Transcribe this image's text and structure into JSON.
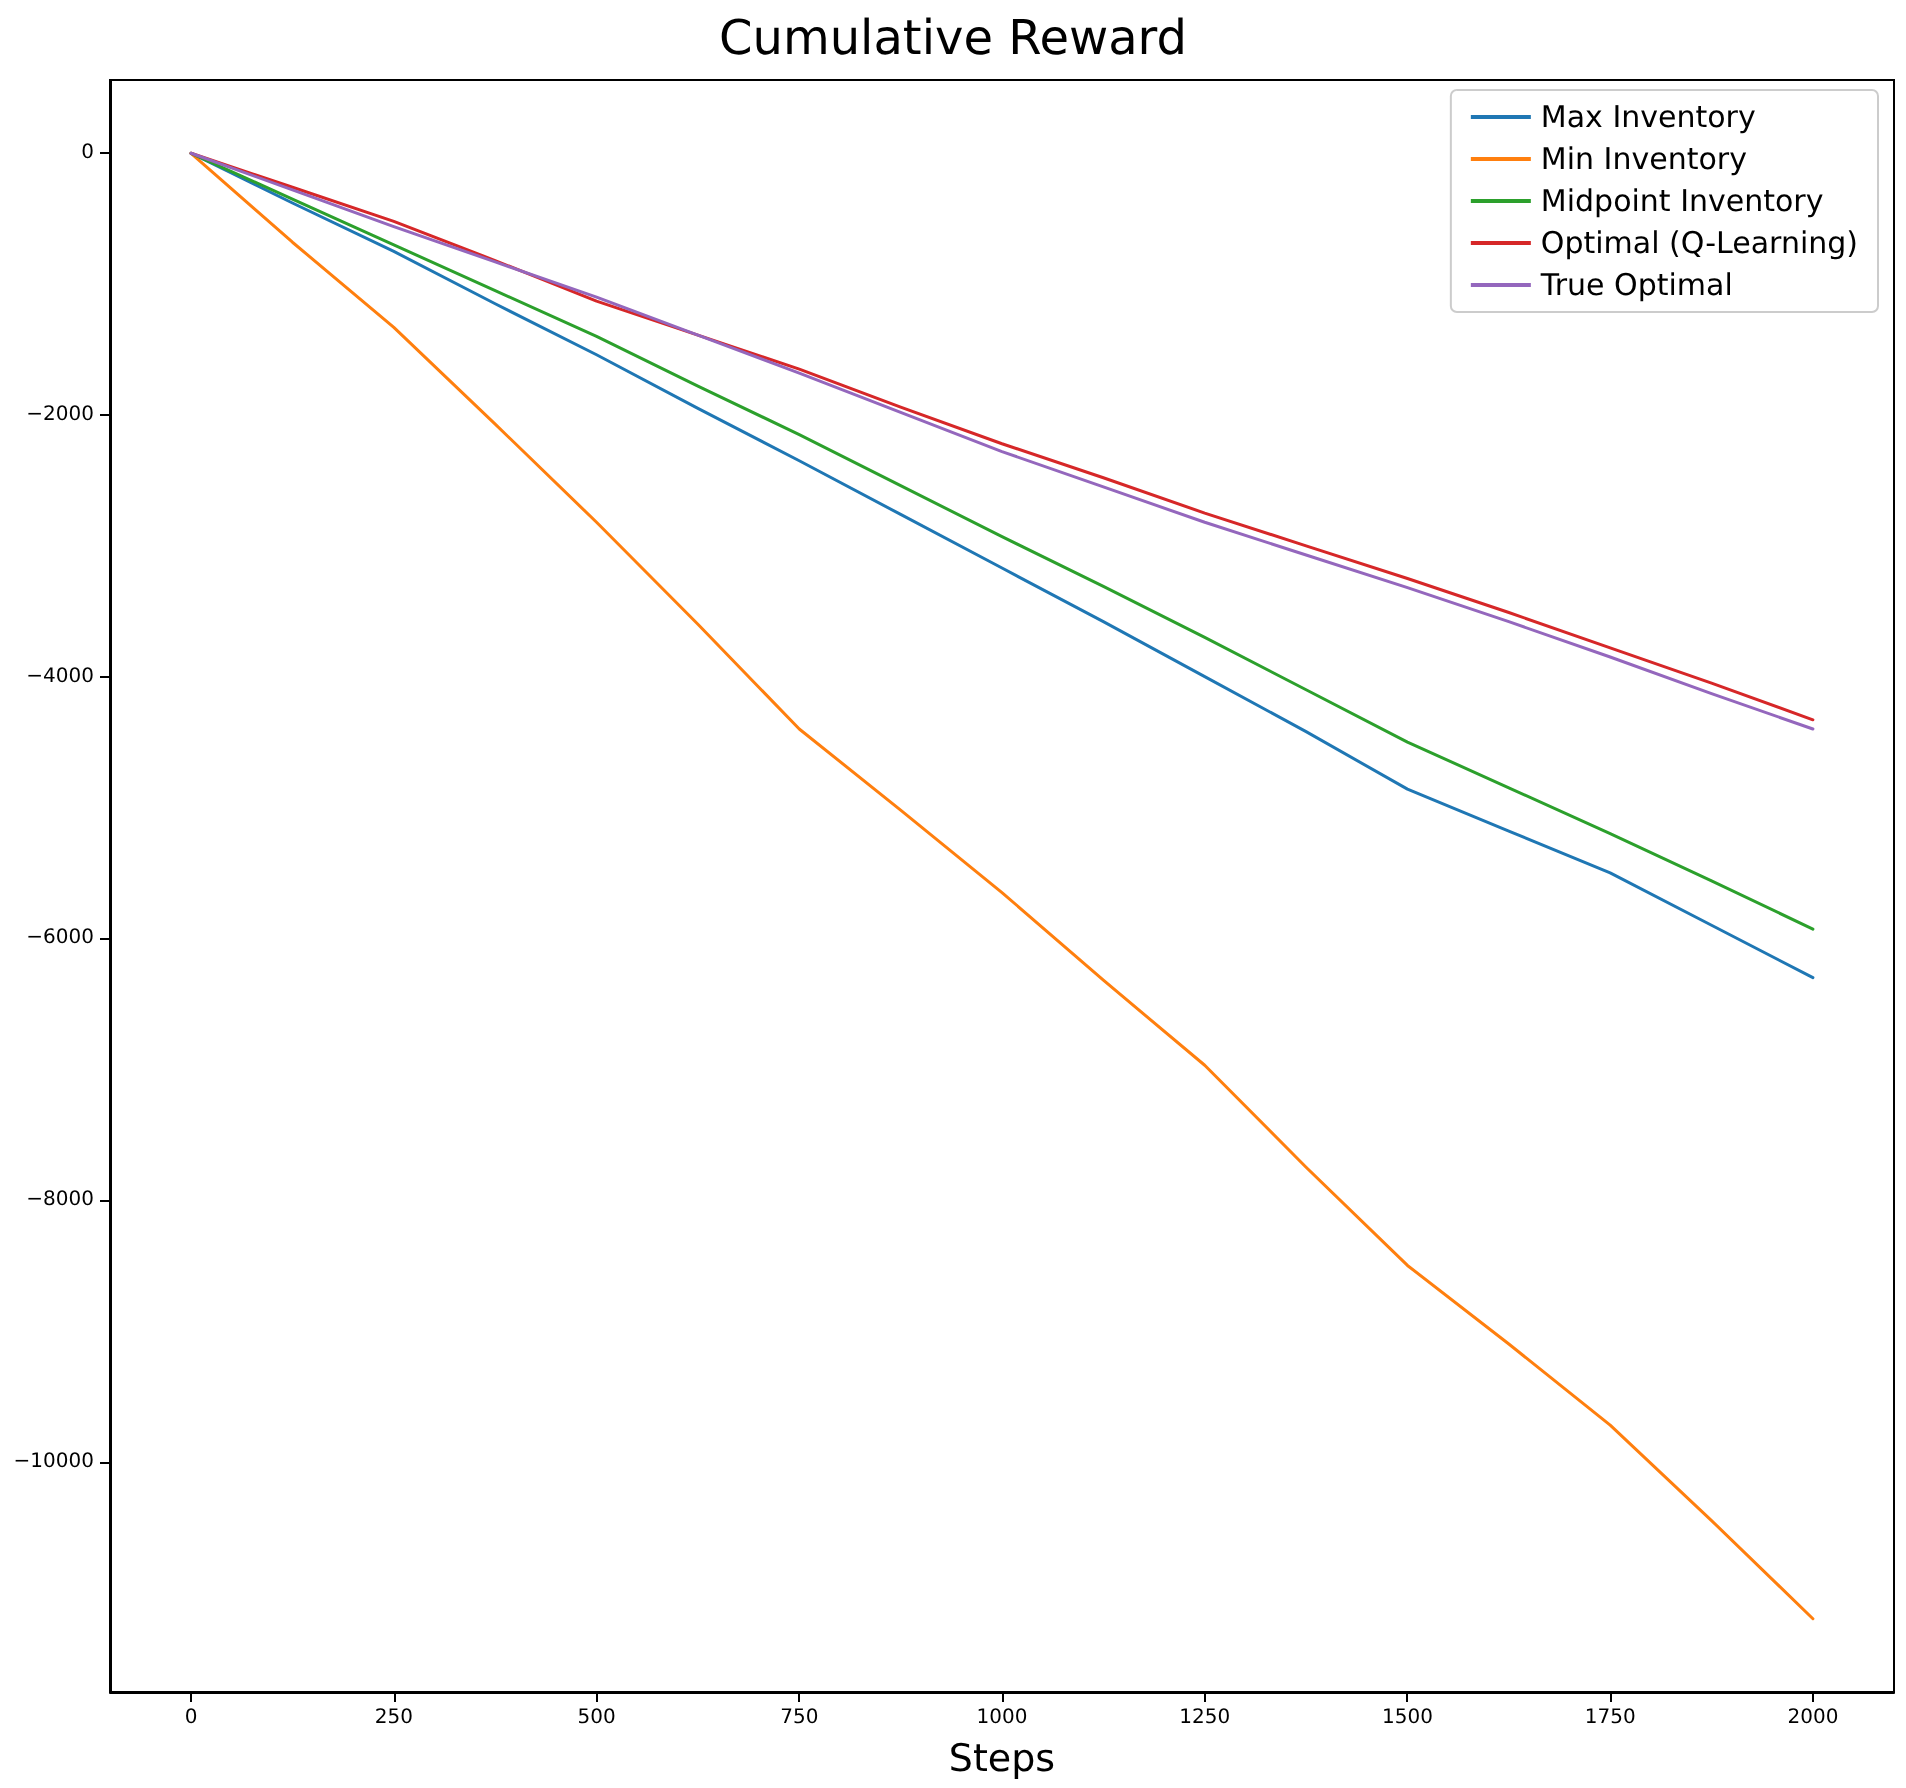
{
  "chart_data": {
    "type": "line",
    "title": "Cumulative Reward",
    "xlabel": "Steps",
    "x": [
      0,
      125,
      250,
      375,
      500,
      625,
      750,
      875,
      1000,
      1125,
      1250,
      1375,
      1500,
      1625,
      1750,
      1875,
      2000
    ],
    "series": [
      {
        "name": "Max Inventory",
        "color": "#1f77b4",
        "values": [
          0,
          -380,
          -750,
          -1150,
          -1540,
          -1950,
          -2350,
          -2760,
          -3170,
          -3580,
          -4000,
          -4420,
          -4860,
          -5180,
          -5500,
          -5900,
          -6300
        ]
      },
      {
        "name": "Min Inventory",
        "color": "#ff7f0e",
        "values": [
          0,
          -680,
          -1330,
          -2070,
          -2820,
          -3600,
          -4400,
          -5020,
          -5650,
          -6320,
          -6970,
          -7750,
          -8500,
          -9100,
          -9720,
          -10450,
          -11200
        ]
      },
      {
        "name": "Midpoint Inventory",
        "color": "#2ca02c",
        "values": [
          0,
          -350,
          -700,
          -1050,
          -1400,
          -1780,
          -2150,
          -2540,
          -2930,
          -3310,
          -3700,
          -4100,
          -4500,
          -4850,
          -5200,
          -5560,
          -5930
        ]
      },
      {
        "name": "Optimal (Q-Learning)",
        "color": "#d62728",
        "values": [
          0,
          -260,
          -520,
          -820,
          -1130,
          -1390,
          -1650,
          -1940,
          -2220,
          -2480,
          -2750,
          -3000,
          -3250,
          -3510,
          -3780,
          -4050,
          -4330
        ]
      },
      {
        "name": "True Optimal",
        "color": "#9467bd",
        "values": [
          0,
          -280,
          -560,
          -830,
          -1100,
          -1390,
          -1680,
          -1980,
          -2280,
          -2550,
          -2820,
          -3070,
          -3320,
          -3580,
          -3850,
          -4130,
          -4400
        ]
      }
    ],
    "xlim": [
      -100,
      2100
    ],
    "ylim": [
      -11760,
      560
    ],
    "xticks": [
      0,
      250,
      500,
      750,
      1000,
      1250,
      1500,
      1750,
      2000
    ],
    "yticks": [
      {
        "value": -10000,
        "label": "−10000"
      },
      {
        "value": -8000,
        "label": "−8000"
      },
      {
        "value": -6000,
        "label": "−6000"
      },
      {
        "value": -4000,
        "label": "−4000"
      },
      {
        "value": -2000,
        "label": "−2000"
      },
      0
    ],
    "grid": false,
    "legend": "top right",
    "marker": "none",
    "line_style": "solid"
  }
}
